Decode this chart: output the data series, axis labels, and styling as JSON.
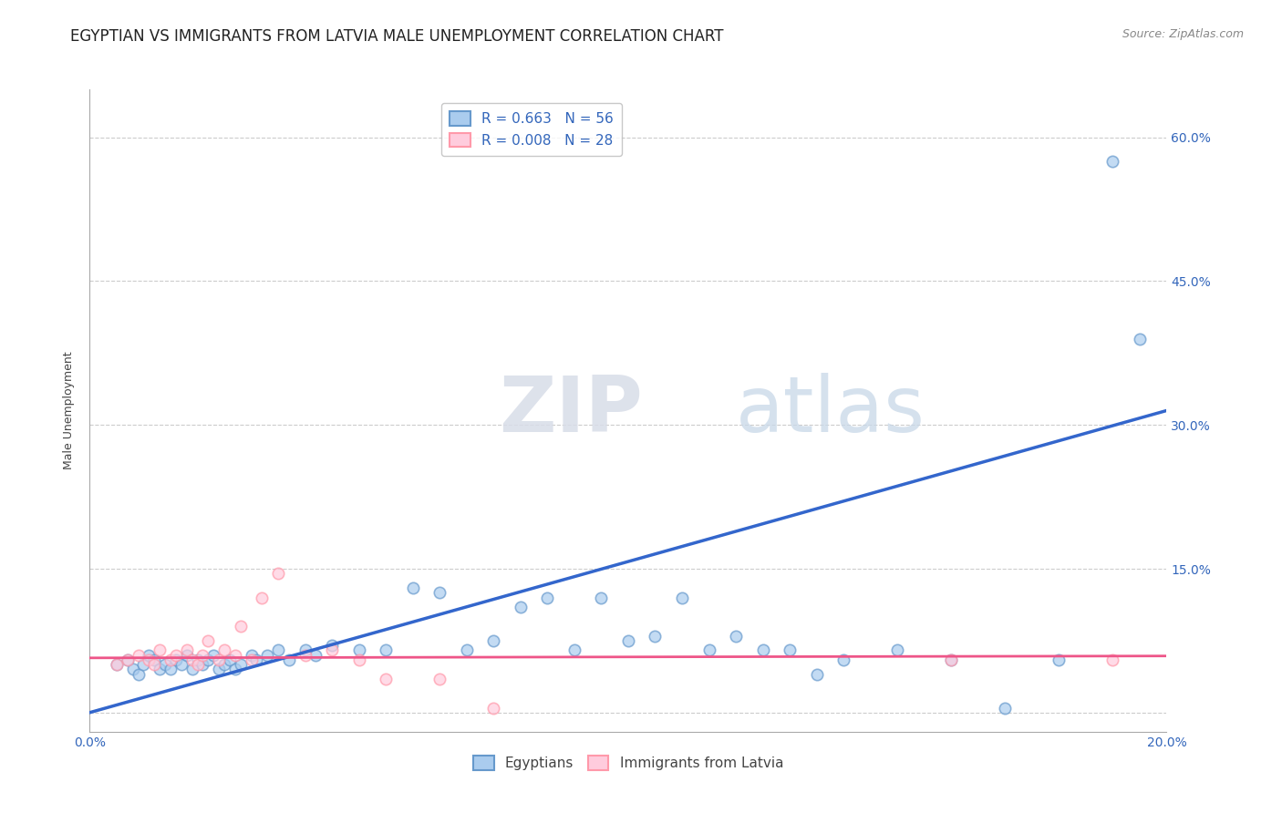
{
  "title": "EGYPTIAN VS IMMIGRANTS FROM LATVIA MALE UNEMPLOYMENT CORRELATION CHART",
  "source": "Source: ZipAtlas.com",
  "ylabel": "Male Unemployment",
  "xlim": [
    0.0,
    0.2
  ],
  "ylim": [
    -0.02,
    0.65
  ],
  "yticks": [
    0.0,
    0.15,
    0.3,
    0.45,
    0.6
  ],
  "ytick_labels_right": [
    "",
    "15.0%",
    "30.0%",
    "45.0%",
    "60.0%"
  ],
  "xticks": [
    0.0,
    0.05,
    0.1,
    0.15,
    0.2
  ],
  "xtick_labels": [
    "0.0%",
    "",
    "",
    "",
    "20.0%"
  ],
  "legend_entries": [
    {
      "label": "R = 0.663   N = 56"
    },
    {
      "label": "R = 0.008   N = 28"
    }
  ],
  "bottom_legend": [
    "Egyptians",
    "Immigrants from Latvia"
  ],
  "watermark_zip": "ZIP",
  "watermark_atlas": "atlas",
  "blue_color": "#6699cc",
  "blue_face": "#aaccee",
  "pink_color": "#ff99aa",
  "pink_face": "#ffccdd",
  "blue_line_color": "#3366cc",
  "pink_line_color": "#ee5588",
  "blue_scatter_x": [
    0.005,
    0.007,
    0.008,
    0.009,
    0.01,
    0.011,
    0.012,
    0.013,
    0.014,
    0.015,
    0.016,
    0.017,
    0.018,
    0.019,
    0.02,
    0.021,
    0.022,
    0.023,
    0.024,
    0.025,
    0.026,
    0.027,
    0.028,
    0.03,
    0.031,
    0.033,
    0.035,
    0.037,
    0.04,
    0.042,
    0.045,
    0.05,
    0.055,
    0.06,
    0.065,
    0.07,
    0.075,
    0.08,
    0.085,
    0.09,
    0.095,
    0.1,
    0.105,
    0.11,
    0.115,
    0.12,
    0.125,
    0.13,
    0.135,
    0.14,
    0.15,
    0.16,
    0.17,
    0.18,
    0.19,
    0.195
  ],
  "blue_scatter_y": [
    0.05,
    0.055,
    0.045,
    0.04,
    0.05,
    0.06,
    0.055,
    0.045,
    0.05,
    0.045,
    0.055,
    0.05,
    0.06,
    0.045,
    0.055,
    0.05,
    0.055,
    0.06,
    0.045,
    0.05,
    0.055,
    0.045,
    0.05,
    0.06,
    0.055,
    0.06,
    0.065,
    0.055,
    0.065,
    0.06,
    0.07,
    0.065,
    0.065,
    0.13,
    0.125,
    0.065,
    0.075,
    0.11,
    0.12,
    0.065,
    0.12,
    0.075,
    0.08,
    0.12,
    0.065,
    0.08,
    0.065,
    0.065,
    0.04,
    0.055,
    0.065,
    0.055,
    0.005,
    0.055,
    0.575,
    0.39
  ],
  "pink_scatter_x": [
    0.005,
    0.007,
    0.009,
    0.011,
    0.012,
    0.013,
    0.015,
    0.016,
    0.018,
    0.019,
    0.02,
    0.021,
    0.022,
    0.024,
    0.025,
    0.027,
    0.028,
    0.03,
    0.032,
    0.035,
    0.04,
    0.045,
    0.05,
    0.055,
    0.065,
    0.075,
    0.16,
    0.19
  ],
  "pink_scatter_y": [
    0.05,
    0.055,
    0.06,
    0.055,
    0.05,
    0.065,
    0.055,
    0.06,
    0.065,
    0.055,
    0.05,
    0.06,
    0.075,
    0.055,
    0.065,
    0.06,
    0.09,
    0.055,
    0.12,
    0.145,
    0.06,
    0.065,
    0.055,
    0.035,
    0.035,
    0.005,
    0.055,
    0.055
  ],
  "blue_line_x": [
    0.0,
    0.2
  ],
  "blue_line_y": [
    0.0,
    0.315
  ],
  "pink_line_x": [
    0.0,
    0.2
  ],
  "pink_line_y": [
    0.057,
    0.059
  ],
  "background_color": "#ffffff",
  "grid_color": "#cccccc",
  "title_fontsize": 12,
  "axis_label_fontsize": 9,
  "tick_fontsize": 10,
  "legend_fontsize": 11
}
